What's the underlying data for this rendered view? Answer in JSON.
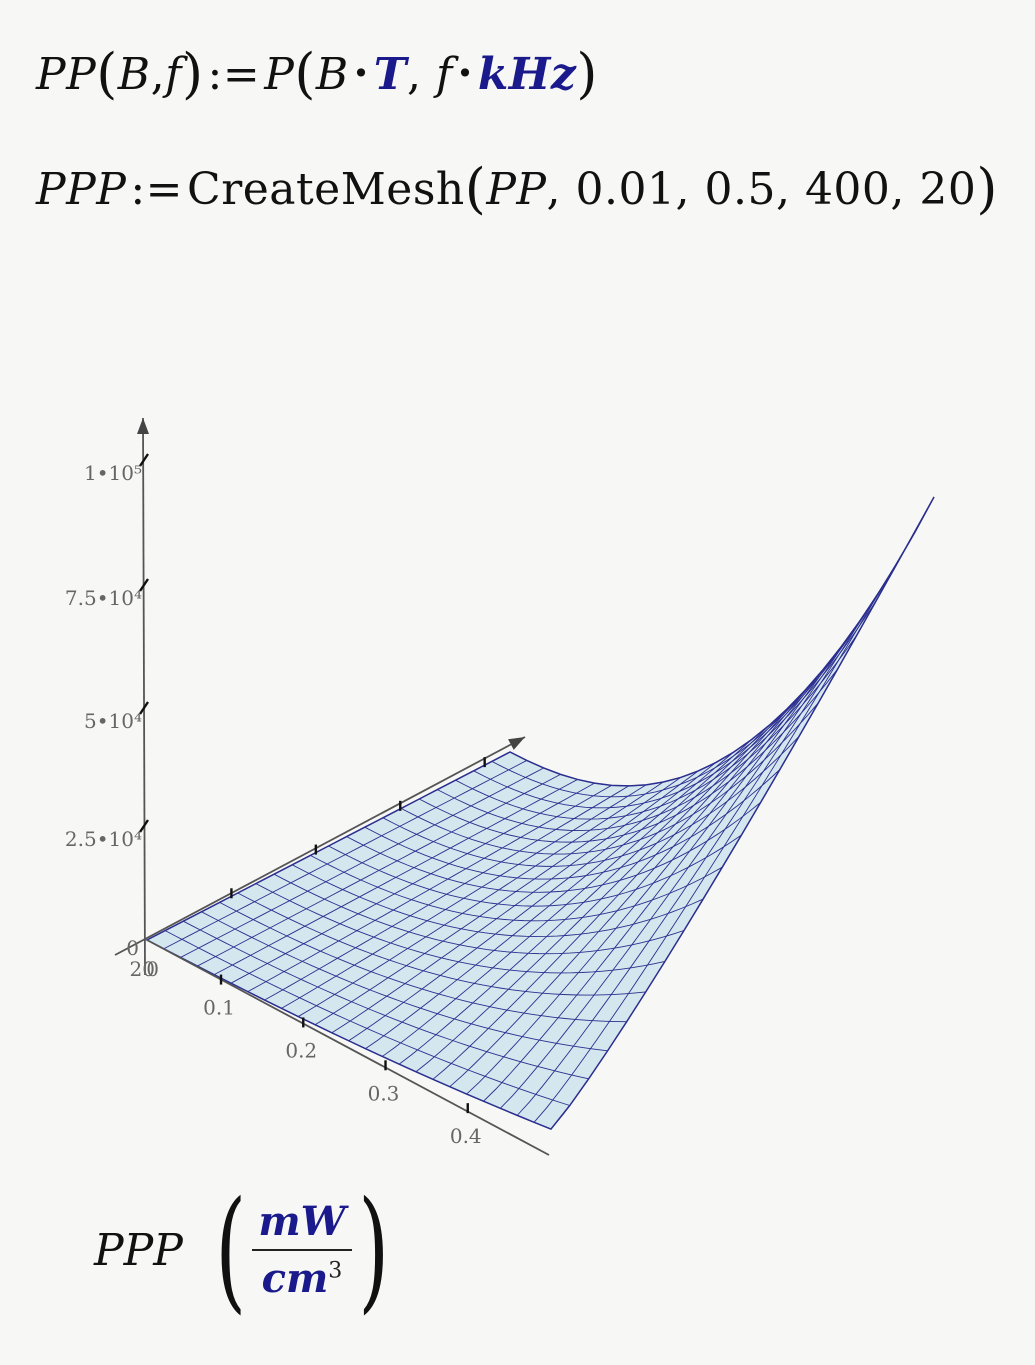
{
  "worksheet": {
    "eq1": {
      "lhs_fn": "PP",
      "lhs_args": [
        "B",
        "f"
      ],
      "assign": ":=",
      "rhs_fn": "P",
      "arg1_var": "B",
      "arg1_unit": "T",
      "arg2_var": "f",
      "arg2_unit": "kHz"
    },
    "eq2": {
      "lhs": "PPP",
      "assign": ":=",
      "fn": "CreateMesh",
      "args": [
        "PP",
        "0.01",
        "0.5",
        "400",
        "20"
      ]
    }
  },
  "chart_data": {
    "type": "surface",
    "variable": "PPP",
    "units": {
      "num": "mW",
      "den": "cm",
      "exp": "3"
    },
    "x_axis": {
      "range": [
        0.01,
        0.5
      ],
      "ticks": [
        "0.1",
        "0.2",
        "0.3",
        "0.4"
      ],
      "origin_label": "0"
    },
    "y_axis": {
      "range": [
        400,
        20
      ],
      "origin_label": "20"
    },
    "z_axis": {
      "range": [
        0,
        100000
      ],
      "ticks": [
        "0",
        "2.5•10⁴",
        "5•10⁴",
        "7.5•10⁴",
        "1•10⁵"
      ]
    },
    "color": "#d4e6ee",
    "grid_color": "#2c2f8f",
    "x_points": [
      0.01,
      0.1,
      0.2,
      0.3,
      0.4,
      0.5
    ],
    "z_corner_values": {
      "x0_ymin": 0,
      "x0_ymax": 0,
      "x1_ymin": 4500,
      "x1_ymax": 100000
    }
  }
}
